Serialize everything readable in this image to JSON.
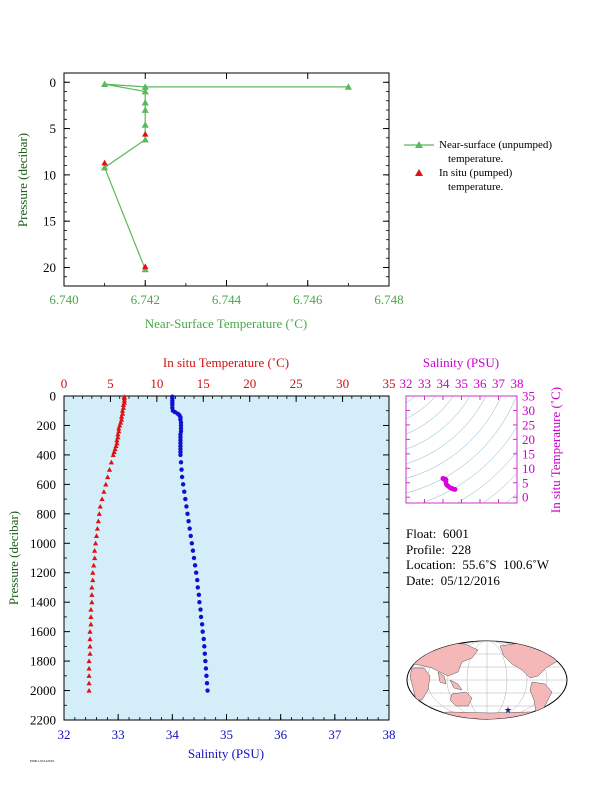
{
  "chart_data": [
    {
      "type": "line",
      "xlabel": "Near-Surface Temperature (˚C)",
      "ylabel": "Pressure (decibar)",
      "xlim": [
        6.74,
        6.748
      ],
      "ylim": [
        22,
        -1
      ],
      "x_ticks": [
        "6.740",
        "6.742",
        "6.744",
        "6.746",
        "6.748"
      ],
      "y_ticks": [
        "0",
        "5",
        "10",
        "15",
        "20"
      ],
      "colors": {
        "unpumped": "#5cb85c",
        "pumped": "#e01010",
        "axis_label": "#4aa84a"
      },
      "legend": [
        {
          "line1": "Near-surface (unpumped)",
          "line2": "temperature."
        },
        {
          "line1": "In situ (pumped)",
          "line2": "temperature."
        }
      ],
      "series": [
        {
          "points": [
            {
              "x": 6.747,
              "y": 0.5
            },
            {
              "x": 6.742,
              "y": 0.5
            },
            {
              "x": 6.741,
              "y": 0.2
            },
            {
              "x": 6.742,
              "y": 1.0
            },
            {
              "x": 6.742,
              "y": 2.2
            },
            {
              "x": 6.742,
              "y": 3.0
            },
            {
              "x": 6.742,
              "y": 4.6
            },
            {
              "x": 6.742,
              "y": 6.2
            },
            {
              "x": 6.741,
              "y": 9.2
            },
            {
              "x": 6.742,
              "y": 20.2
            }
          ]
        },
        {
          "points": [
            {
              "x": 6.742,
              "y": 5.6
            },
            {
              "x": 6.741,
              "y": 8.7
            },
            {
              "x": 6.742,
              "y": 19.9
            }
          ]
        }
      ]
    },
    {
      "type": "scatter",
      "xlabel_top": "In situ Temperature (˚C)",
      "xlabel_bottom": "Salinity (PSU)",
      "ylabel": "Pressure (decibar)",
      "temperature_xlim": [
        0,
        35
      ],
      "salinity_xlim": [
        32,
        38
      ],
      "ylim": [
        2200,
        0
      ],
      "temp_ticks": [
        "0",
        "5",
        "10",
        "15",
        "20",
        "25",
        "30",
        "35"
      ],
      "sal_ticks": [
        "32",
        "33",
        "34",
        "35",
        "36",
        "37",
        "38"
      ],
      "y_ticks": [
        "0",
        "200",
        "400",
        "600",
        "800",
        "1000",
        "1200",
        "1400",
        "1600",
        "1800",
        "2000",
        "2200"
      ],
      "background": "#d3eef8",
      "colors": {
        "temperature": "#e01010",
        "salinity": "#1010d0",
        "pressure_label": "#1a5c1a"
      },
      "series": [
        {
          "points": [
            {
              "x": 6.5,
              "y": 5
            },
            {
              "x": 6.5,
              "y": 15
            },
            {
              "x": 6.5,
              "y": 30
            },
            {
              "x": 6.5,
              "y": 45
            },
            {
              "x": 6.4,
              "y": 60
            },
            {
              "x": 6.4,
              "y": 80
            },
            {
              "x": 6.3,
              "y": 100
            },
            {
              "x": 6.3,
              "y": 120
            },
            {
              "x": 6.2,
              "y": 140
            },
            {
              "x": 6.2,
              "y": 160
            },
            {
              "x": 6.1,
              "y": 180
            },
            {
              "x": 6.0,
              "y": 200
            },
            {
              "x": 5.9,
              "y": 220
            },
            {
              "x": 5.9,
              "y": 240
            },
            {
              "x": 5.8,
              "y": 260
            },
            {
              "x": 5.8,
              "y": 280
            },
            {
              "x": 5.7,
              "y": 300
            },
            {
              "x": 5.7,
              "y": 320
            },
            {
              "x": 5.6,
              "y": 340
            },
            {
              "x": 5.5,
              "y": 360
            },
            {
              "x": 5.4,
              "y": 380
            },
            {
              "x": 5.3,
              "y": 400
            },
            {
              "x": 5.1,
              "y": 450
            },
            {
              "x": 4.9,
              "y": 500
            },
            {
              "x": 4.7,
              "y": 550
            },
            {
              "x": 4.5,
              "y": 600
            },
            {
              "x": 4.3,
              "y": 650
            },
            {
              "x": 4.1,
              "y": 700
            },
            {
              "x": 3.9,
              "y": 750
            },
            {
              "x": 3.8,
              "y": 800
            },
            {
              "x": 3.7,
              "y": 850
            },
            {
              "x": 3.6,
              "y": 900
            },
            {
              "x": 3.5,
              "y": 950
            },
            {
              "x": 3.4,
              "y": 1000
            },
            {
              "x": 3.3,
              "y": 1050
            },
            {
              "x": 3.3,
              "y": 1100
            },
            {
              "x": 3.2,
              "y": 1150
            },
            {
              "x": 3.1,
              "y": 1200
            },
            {
              "x": 3.1,
              "y": 1250
            },
            {
              "x": 3.0,
              "y": 1300
            },
            {
              "x": 3.0,
              "y": 1350
            },
            {
              "x": 3.0,
              "y": 1400
            },
            {
              "x": 2.9,
              "y": 1450
            },
            {
              "x": 2.9,
              "y": 1500
            },
            {
              "x": 2.9,
              "y": 1550
            },
            {
              "x": 2.8,
              "y": 1600
            },
            {
              "x": 2.8,
              "y": 1650
            },
            {
              "x": 2.8,
              "y": 1700
            },
            {
              "x": 2.8,
              "y": 1750
            },
            {
              "x": 2.7,
              "y": 1800
            },
            {
              "x": 2.7,
              "y": 1850
            },
            {
              "x": 2.7,
              "y": 1900
            },
            {
              "x": 2.7,
              "y": 1950
            },
            {
              "x": 2.7,
              "y": 2000
            }
          ]
        },
        {
          "points": [
            {
              "x": 34.0,
              "y": 5
            },
            {
              "x": 34.0,
              "y": 15
            },
            {
              "x": 34.0,
              "y": 30
            },
            {
              "x": 34.0,
              "y": 45
            },
            {
              "x": 34.0,
              "y": 60
            },
            {
              "x": 34.0,
              "y": 80
            },
            {
              "x": 34.01,
              "y": 100
            },
            {
              "x": 34.05,
              "y": 110
            },
            {
              "x": 34.1,
              "y": 120
            },
            {
              "x": 34.13,
              "y": 130
            },
            {
              "x": 34.15,
              "y": 145
            },
            {
              "x": 34.15,
              "y": 160
            },
            {
              "x": 34.16,
              "y": 180
            },
            {
              "x": 34.16,
              "y": 200
            },
            {
              "x": 34.16,
              "y": 220
            },
            {
              "x": 34.16,
              "y": 240
            },
            {
              "x": 34.15,
              "y": 260
            },
            {
              "x": 34.15,
              "y": 280
            },
            {
              "x": 34.15,
              "y": 300
            },
            {
              "x": 34.15,
              "y": 320
            },
            {
              "x": 34.15,
              "y": 340
            },
            {
              "x": 34.15,
              "y": 360
            },
            {
              "x": 34.15,
              "y": 380
            },
            {
              "x": 34.15,
              "y": 400
            },
            {
              "x": 34.16,
              "y": 450
            },
            {
              "x": 34.17,
              "y": 500
            },
            {
              "x": 34.18,
              "y": 550
            },
            {
              "x": 34.2,
              "y": 600
            },
            {
              "x": 34.22,
              "y": 650
            },
            {
              "x": 34.24,
              "y": 700
            },
            {
              "x": 34.26,
              "y": 750
            },
            {
              "x": 34.28,
              "y": 800
            },
            {
              "x": 34.3,
              "y": 850
            },
            {
              "x": 34.32,
              "y": 900
            },
            {
              "x": 34.34,
              "y": 950
            },
            {
              "x": 34.36,
              "y": 1000
            },
            {
              "x": 34.38,
              "y": 1050
            },
            {
              "x": 34.4,
              "y": 1100
            },
            {
              "x": 34.42,
              "y": 1150
            },
            {
              "x": 34.44,
              "y": 1200
            },
            {
              "x": 34.46,
              "y": 1250
            },
            {
              "x": 34.47,
              "y": 1300
            },
            {
              "x": 34.49,
              "y": 1350
            },
            {
              "x": 34.5,
              "y": 1400
            },
            {
              "x": 34.52,
              "y": 1450
            },
            {
              "x": 34.53,
              "y": 1500
            },
            {
              "x": 34.55,
              "y": 1550
            },
            {
              "x": 34.56,
              "y": 1600
            },
            {
              "x": 34.58,
              "y": 1650
            },
            {
              "x": 34.59,
              "y": 1700
            },
            {
              "x": 34.6,
              "y": 1750
            },
            {
              "x": 34.61,
              "y": 1800
            },
            {
              "x": 34.62,
              "y": 1850
            },
            {
              "x": 34.63,
              "y": 1900
            },
            {
              "x": 34.64,
              "y": 1950
            },
            {
              "x": 34.65,
              "y": 2000
            }
          ]
        }
      ]
    },
    {
      "type": "scatter",
      "xlabel": "Salinity (PSU)",
      "ylabel": "In situ Temperature (˚C)",
      "xlim": [
        32,
        38
      ],
      "ylim": [
        -2,
        35
      ],
      "x_ticks": [
        "32",
        "33",
        "34",
        "35",
        "36",
        "37",
        "38"
      ],
      "y_ticks": [
        "0",
        "5",
        "10",
        "15",
        "20",
        "25",
        "30",
        "35"
      ],
      "color": "#dd00dd",
      "series": [
        {
          "points": [
            {
              "x": 34.0,
              "y": 6.5
            },
            {
              "x": 34.0,
              "y": 6.4
            },
            {
              "x": 34.1,
              "y": 6.3
            },
            {
              "x": 34.16,
              "y": 6.1
            },
            {
              "x": 34.15,
              "y": 5.8
            },
            {
              "x": 34.15,
              "y": 5.5
            },
            {
              "x": 34.15,
              "y": 5.3
            },
            {
              "x": 34.18,
              "y": 4.5
            },
            {
              "x": 34.22,
              "y": 4.1
            },
            {
              "x": 34.28,
              "y": 3.8
            },
            {
              "x": 34.36,
              "y": 3.4
            },
            {
              "x": 34.44,
              "y": 3.1
            },
            {
              "x": 34.5,
              "y": 3.0
            },
            {
              "x": 34.56,
              "y": 2.8
            },
            {
              "x": 34.61,
              "y": 2.7
            },
            {
              "x": 34.65,
              "y": 2.7
            }
          ]
        }
      ]
    }
  ],
  "float_info": {
    "float": "Float:  6001",
    "profile": "Profile:  228",
    "location": "Location:  55.6˚S  100.6˚W",
    "date": "Date:  05/12/2016"
  },
  "footer_stamp": "P6001-05122016"
}
